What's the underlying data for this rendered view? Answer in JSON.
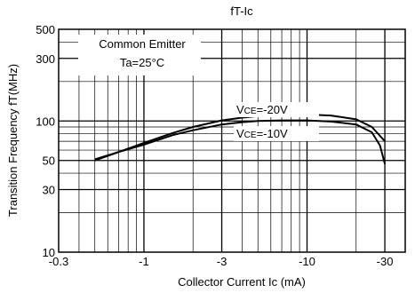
{
  "chart_data": {
    "type": "line",
    "title": "fT-Ic",
    "xlabel": "Collector Current Ic (mA)",
    "ylabel": "Transition Frequency fT(MHz)",
    "xscale": "log",
    "yscale": "log",
    "xlim": [
      -0.3,
      -40
    ],
    "ylim": [
      10,
      500
    ],
    "xticks": [
      {
        "value": -0.3,
        "label": "-0.3"
      },
      {
        "value": -1,
        "label": "-1"
      },
      {
        "value": -3,
        "label": "-3"
      },
      {
        "value": -10,
        "label": "-10"
      },
      {
        "value": -30,
        "label": "-30"
      }
    ],
    "yticks": [
      {
        "value": 10,
        "label": "10"
      },
      {
        "value": 30,
        "label": "30"
      },
      {
        "value": 50,
        "label": "50"
      },
      {
        "value": 100,
        "label": "100"
      },
      {
        "value": 300,
        "label": "300"
      },
      {
        "value": 500,
        "label": "500"
      }
    ],
    "grid": true,
    "conditions": [
      "Common Emitter",
      "Ta=25°C"
    ],
    "series": [
      {
        "name": "VCE=-20V",
        "label_main": "V",
        "label_sub": "CE",
        "label_rest": "=-20V",
        "x": [
          -0.5,
          -0.7,
          -1.0,
          -1.5,
          -2.0,
          -3.0,
          -4.0,
          -5.0,
          -7.0,
          -10.0,
          -14.0,
          -20.0,
          -25.0,
          -30.0
        ],
        "y": [
          51,
          58,
          68,
          81,
          90,
          101,
          106,
          109,
          111,
          112,
          110,
          103,
          90,
          70
        ]
      },
      {
        "name": "VCE=-10V",
        "label_main": "V",
        "label_sub": "CE",
        "label_rest": "=-10V",
        "x": [
          -0.5,
          -0.7,
          -1.0,
          -1.5,
          -2.0,
          -3.0,
          -4.0,
          -5.0,
          -7.0,
          -10.0,
          -14.0,
          -20.0,
          -25.0,
          -28.0,
          -30.0
        ],
        "y": [
          50,
          58,
          66,
          78,
          85,
          94,
          98,
          100,
          101,
          101,
          99,
          94,
          82,
          65,
          47
        ]
      }
    ]
  }
}
